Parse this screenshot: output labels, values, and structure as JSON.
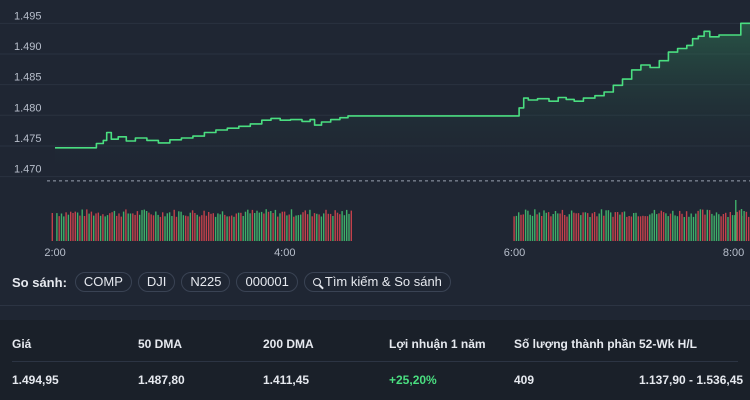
{
  "chart_data": {
    "type": "line",
    "title": "",
    "y_ticks": [
      "1.495",
      "1.490",
      "1.485",
      "1.480",
      "1.475",
      "1.470"
    ],
    "y_tick_values": [
      1495,
      1490,
      1485,
      1480,
      1475,
      1470
    ],
    "x_ticks": [
      "2:00",
      "4:00",
      "6:00",
      "8:00"
    ],
    "x_tick_hours": [
      2,
      4,
      6,
      8
    ],
    "x_range_hours": [
      1.93,
      8.05
    ],
    "y_range": [
      1467,
      1497.5
    ],
    "reference_line": 1469.3,
    "line_color": "#4ade80",
    "series": [
      {
        "points": [
          [
            2.0,
            1474.7
          ],
          [
            2.3,
            1474.7
          ],
          [
            2.36,
            1475.4
          ],
          [
            2.42,
            1475.9
          ],
          [
            2.45,
            1477.2
          ],
          [
            2.49,
            1476.1
          ],
          [
            2.55,
            1476.5
          ],
          [
            2.62,
            1475.8
          ],
          [
            2.7,
            1476.3
          ],
          [
            2.8,
            1475.9
          ],
          [
            2.9,
            1475.5
          ],
          [
            3.0,
            1476.0
          ],
          [
            3.1,
            1476.3
          ],
          [
            3.2,
            1476.6
          ],
          [
            3.3,
            1477.2
          ],
          [
            3.4,
            1477.6
          ],
          [
            3.5,
            1477.9
          ],
          [
            3.6,
            1478.2
          ],
          [
            3.7,
            1478.6
          ],
          [
            3.8,
            1479.2
          ],
          [
            3.88,
            1479.5
          ],
          [
            3.96,
            1479.2
          ],
          [
            4.05,
            1479.3
          ],
          [
            4.15,
            1479.0
          ],
          [
            4.22,
            1479.3
          ],
          [
            4.26,
            1478.4
          ],
          [
            4.32,
            1478.9
          ],
          [
            4.4,
            1479.3
          ],
          [
            4.48,
            1479.6
          ],
          [
            4.55,
            1479.9
          ],
          [
            4.6,
            1479.9
          ],
          [
            5.5,
            1479.9
          ],
          [
            5.9,
            1479.9
          ],
          [
            5.98,
            1479.9
          ],
          [
            6.04,
            1481.2
          ],
          [
            6.08,
            1482.8
          ],
          [
            6.12,
            1482.5
          ],
          [
            6.2,
            1482.7
          ],
          [
            6.3,
            1482.3
          ],
          [
            6.38,
            1482.9
          ],
          [
            6.45,
            1482.6
          ],
          [
            6.52,
            1482.3
          ],
          [
            6.6,
            1482.8
          ],
          [
            6.7,
            1483.2
          ],
          [
            6.78,
            1483.8
          ],
          [
            6.86,
            1484.9
          ],
          [
            6.94,
            1485.9
          ],
          [
            7.02,
            1487.4
          ],
          [
            7.1,
            1488.2
          ],
          [
            7.18,
            1487.8
          ],
          [
            7.26,
            1488.9
          ],
          [
            7.34,
            1490.3
          ],
          [
            7.42,
            1490.9
          ],
          [
            7.5,
            1491.4
          ],
          [
            7.55,
            1492.5
          ],
          [
            7.6,
            1492.9
          ],
          [
            7.65,
            1493.7
          ],
          [
            7.7,
            1492.8
          ],
          [
            7.78,
            1493.1
          ],
          [
            7.9,
            1493.1
          ],
          [
            7.96,
            1493.1
          ],
          [
            7.97,
            1495.0
          ],
          [
            8.05,
            1495.0
          ]
        ]
      }
    ],
    "volume_segments": [
      [
        2.01,
        4.6
      ],
      [
        5.99,
        8.05
      ]
    ]
  },
  "compare": {
    "label": "So sánh:",
    "chips": [
      "COMP",
      "DJI",
      "N225",
      "000001"
    ],
    "search_label": "Tìm kiếm & So sánh"
  },
  "stats": {
    "headers": [
      "Giá",
      "50 DMA",
      "200 DMA",
      "Lợi nhuận 1 năm",
      "Số lượng thành phần",
      "52-Wk H/L"
    ],
    "values": [
      "1.494,95",
      "1.487,80",
      "1.411,45",
      "+25,20%",
      "409",
      "1.137,90 - 1.536,45"
    ],
    "positive_color": "#4ade80"
  }
}
